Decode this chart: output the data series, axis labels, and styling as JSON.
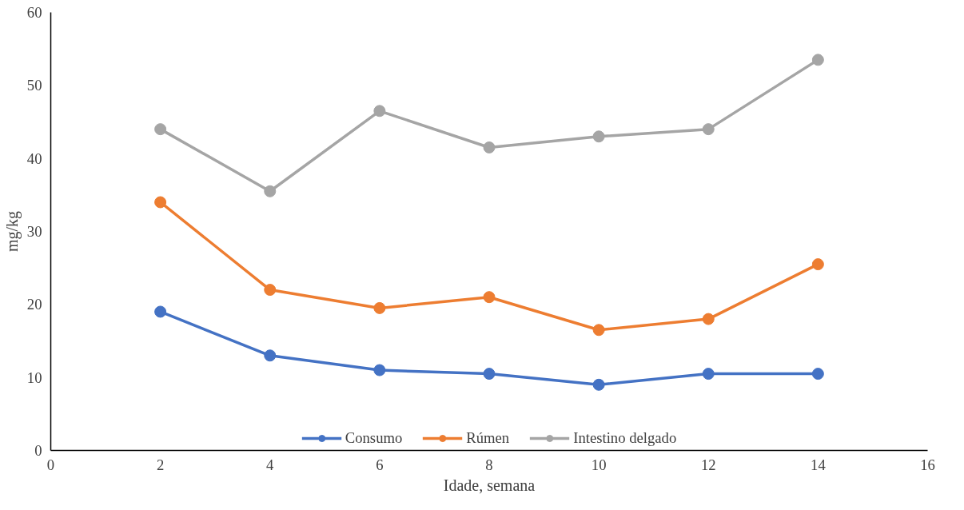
{
  "chart_data": {
    "type": "line",
    "xlabel": "Idade, semana",
    "ylabel": "mg/kg",
    "x": [
      2,
      4,
      6,
      8,
      10,
      12,
      14
    ],
    "series": [
      {
        "name": "Consumo",
        "color": "#4472c4",
        "values": [
          19,
          13,
          11,
          10.5,
          9,
          10.5,
          10.5
        ]
      },
      {
        "name": "Rúmen",
        "color": "#ed7d31",
        "values": [
          34,
          22,
          19.5,
          21,
          16.5,
          18,
          25.5
        ]
      },
      {
        "name": "Intestino delgado",
        "color": "#a5a5a5",
        "values": [
          44,
          35.5,
          46.5,
          41.5,
          43,
          44,
          53.5
        ]
      }
    ],
    "xlim": [
      0,
      16
    ],
    "xticks": [
      0,
      2,
      4,
      6,
      8,
      10,
      12,
      14,
      16
    ],
    "ylim": [
      0,
      60
    ],
    "yticks": [
      0,
      10,
      20,
      30,
      40,
      50,
      60
    ],
    "grid": false,
    "legend": "bottom",
    "marker": "circle",
    "line_style": "solid"
  }
}
